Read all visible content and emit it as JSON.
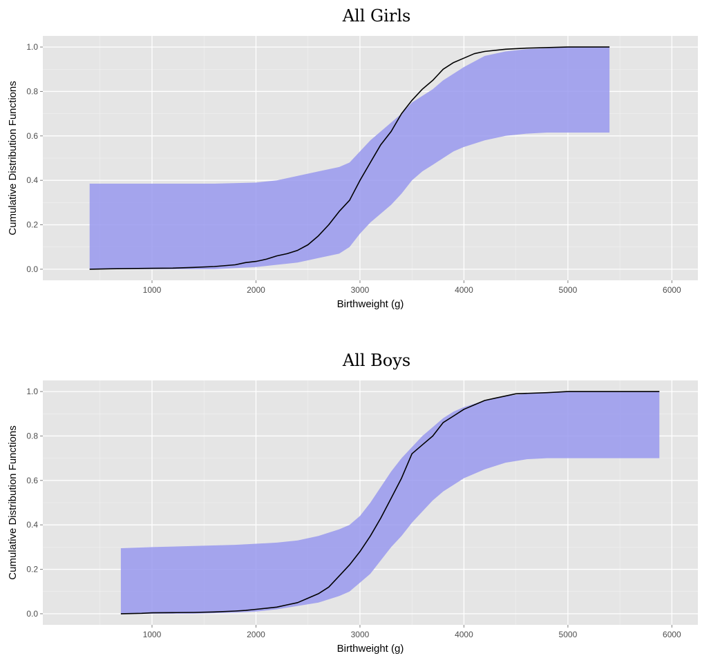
{
  "colors": {
    "panel_background": "#e5e5e5",
    "grid": "#ffffff",
    "band": "#9999ee",
    "line": "#000000"
  },
  "chart_data": [
    {
      "type": "line",
      "title": "All Girls",
      "xlabel": "Birthweight (g)",
      "ylabel": "Cumulative Distribution Functions",
      "xlim": [
        -50,
        6250
      ],
      "ylim": [
        -0.05,
        1.05
      ],
      "x_ticks": [
        1000,
        2000,
        3000,
        4000,
        5000,
        6000
      ],
      "y_ticks": [
        "0.0",
        "0.2",
        "0.4",
        "0.6",
        "0.8",
        "1.0"
      ],
      "grid": true,
      "legend": "none",
      "band": {
        "x": [
          400,
          800,
          1200,
          1600,
          2000,
          2200,
          2400,
          2600,
          2800,
          2900,
          3000,
          3100,
          3200,
          3300,
          3400,
          3500,
          3600,
          3700,
          3800,
          3900,
          4000,
          4200,
          4400,
          4600,
          4800,
          5000,
          5400
        ],
        "lower": [
          0.0,
          0.0,
          0.0,
          0.0,
          0.01,
          0.02,
          0.03,
          0.05,
          0.07,
          0.1,
          0.16,
          0.21,
          0.25,
          0.29,
          0.34,
          0.4,
          0.44,
          0.47,
          0.5,
          0.53,
          0.55,
          0.58,
          0.6,
          0.61,
          0.615,
          0.615,
          0.615
        ],
        "upper": [
          0.385,
          0.385,
          0.385,
          0.385,
          0.39,
          0.4,
          0.42,
          0.44,
          0.46,
          0.48,
          0.53,
          0.58,
          0.62,
          0.66,
          0.7,
          0.75,
          0.78,
          0.81,
          0.85,
          0.88,
          0.91,
          0.96,
          0.98,
          0.99,
          0.995,
          1.0,
          1.0
        ]
      },
      "line": {
        "x": [
          400,
          600,
          800,
          1000,
          1200,
          1400,
          1600,
          1800,
          1900,
          2000,
          2100,
          2200,
          2300,
          2400,
          2500,
          2600,
          2700,
          2800,
          2900,
          3000,
          3100,
          3200,
          3300,
          3400,
          3500,
          3600,
          3700,
          3800,
          3900,
          4000,
          4100,
          4200,
          4400,
          4600,
          5000,
          5400
        ],
        "y": [
          0.0,
          0.002,
          0.003,
          0.004,
          0.005,
          0.008,
          0.012,
          0.02,
          0.03,
          0.035,
          0.045,
          0.06,
          0.07,
          0.085,
          0.11,
          0.15,
          0.2,
          0.26,
          0.31,
          0.4,
          0.48,
          0.56,
          0.62,
          0.7,
          0.76,
          0.81,
          0.85,
          0.9,
          0.93,
          0.95,
          0.97,
          0.98,
          0.99,
          0.995,
          1.0,
          1.0
        ]
      }
    },
    {
      "type": "line",
      "title": "All Boys",
      "xlabel": "Birthweight (g)",
      "ylabel": "Cumulative Distribution Functions",
      "xlim": [
        -50,
        6250
      ],
      "ylim": [
        -0.05,
        1.05
      ],
      "x_ticks": [
        1000,
        2000,
        3000,
        4000,
        5000,
        6000
      ],
      "y_ticks": [
        "0.0",
        "0.2",
        "0.4",
        "0.6",
        "0.8",
        "1.0"
      ],
      "grid": true,
      "legend": "none",
      "band": {
        "x": [
          700,
          1000,
          1400,
          1800,
          2000,
          2200,
          2400,
          2600,
          2800,
          2900,
          3000,
          3100,
          3200,
          3300,
          3400,
          3500,
          3600,
          3700,
          3800,
          3900,
          4000,
          4200,
          4400,
          4600,
          4800,
          5000,
          5880
        ],
        "lower": [
          0.0,
          0.0,
          0.0,
          0.005,
          0.01,
          0.02,
          0.035,
          0.05,
          0.08,
          0.1,
          0.14,
          0.18,
          0.24,
          0.3,
          0.35,
          0.41,
          0.46,
          0.51,
          0.55,
          0.58,
          0.61,
          0.65,
          0.68,
          0.695,
          0.7,
          0.7,
          0.7
        ],
        "upper": [
          0.295,
          0.3,
          0.305,
          0.31,
          0.315,
          0.32,
          0.33,
          0.35,
          0.38,
          0.4,
          0.44,
          0.5,
          0.57,
          0.64,
          0.7,
          0.75,
          0.8,
          0.84,
          0.88,
          0.91,
          0.93,
          0.96,
          0.98,
          0.99,
          0.995,
          1.0,
          1.0
        ]
      },
      "line": {
        "x": [
          700,
          900,
          1000,
          1200,
          1400,
          1600,
          1800,
          1900,
          2000,
          2100,
          2200,
          2300,
          2400,
          2500,
          2600,
          2700,
          2800,
          2900,
          3000,
          3100,
          3200,
          3300,
          3400,
          3500,
          3600,
          3700,
          3800,
          3900,
          4000,
          4100,
          4200,
          4300,
          4500,
          4800,
          5000,
          5880
        ],
        "y": [
          0.0,
          0.002,
          0.004,
          0.005,
          0.006,
          0.008,
          0.012,
          0.015,
          0.02,
          0.025,
          0.03,
          0.04,
          0.05,
          0.07,
          0.09,
          0.12,
          0.17,
          0.22,
          0.28,
          0.35,
          0.43,
          0.52,
          0.61,
          0.72,
          0.76,
          0.8,
          0.86,
          0.89,
          0.92,
          0.94,
          0.96,
          0.97,
          0.99,
          0.995,
          1.0,
          1.0
        ]
      }
    }
  ]
}
